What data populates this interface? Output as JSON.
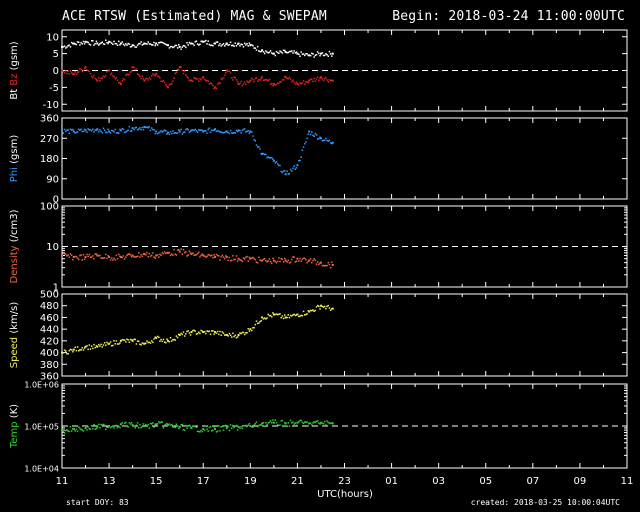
{
  "header": {
    "title": "ACE RTSW (Estimated) MAG & SWEPAM",
    "begin": "Begin: 2018-03-24 11:00:00UTC"
  },
  "footer": {
    "start_doy": "start DOY: 83",
    "created": "created: 2018-03-25 10:00:04UTC"
  },
  "colors": {
    "background": "#000000",
    "bt": "#ffffff",
    "bz": "#dd2222",
    "phi": "#3399ff",
    "density": "#ee6644",
    "speed": "#eeee55",
    "temp": "#33cc33"
  },
  "chart_data": [
    {
      "type": "scatter",
      "panel": "mag",
      "xlabel": "UTC(hours)",
      "x_ticks": [
        "11",
        "13",
        "15",
        "17",
        "19",
        "21",
        "23",
        "01",
        "03",
        "05",
        "07",
        "09",
        "11"
      ],
      "x_unit": "hours since 11:00 UTC",
      "xlim": [
        0,
        24
      ],
      "ylabel_parts": [
        "Bt",
        "Bz",
        "(gsm)"
      ],
      "ylim": [
        -12,
        12
      ],
      "y_ticks": [
        "10",
        "5",
        "0",
        "-5",
        "-10"
      ],
      "reference_line": 0,
      "series": [
        {
          "name": "Bt",
          "color": "#ffffff",
          "x": [
            0,
            0.5,
            1,
            1.5,
            2,
            2.5,
            3,
            3.5,
            4,
            4.5,
            5,
            5.5,
            6,
            6.5,
            7,
            7.5,
            8,
            8.5,
            9,
            9.5,
            10,
            10.5,
            11,
            11.5
          ],
          "y": [
            7,
            8,
            8.5,
            8,
            8.5,
            8,
            7.5,
            8,
            8,
            7.5,
            7,
            8,
            8.5,
            8,
            8,
            8,
            7.5,
            6,
            5,
            5.5,
            5,
            4.5,
            5,
            5
          ]
        },
        {
          "name": "Bz",
          "color": "#dd2222",
          "x": [
            0,
            0.5,
            1,
            1.5,
            2,
            2.5,
            3,
            3.5,
            4,
            4.5,
            5,
            5.5,
            6,
            6.5,
            7,
            7.5,
            8,
            8.5,
            9,
            9.5,
            10,
            10.5,
            11,
            11.5
          ],
          "y": [
            0,
            -1,
            1,
            -3,
            0,
            -4,
            1,
            -3,
            -1,
            -5,
            1,
            -3,
            -2,
            -5,
            0,
            -4,
            -3,
            -2,
            -4,
            -2,
            -4,
            -3,
            -2,
            -3
          ]
        }
      ]
    },
    {
      "type": "scatter",
      "panel": "phi",
      "ylabel_parts": [
        "Phi",
        "(gsm)"
      ],
      "ylim": [
        0,
        360
      ],
      "y_ticks": [
        "360",
        "270",
        "180",
        "90",
        "0"
      ],
      "series": [
        {
          "name": "Phi",
          "color": "#3399ff",
          "x": [
            0,
            0.5,
            1,
            1.5,
            2,
            2.5,
            3,
            3.5,
            4,
            4.5,
            5,
            5.5,
            6,
            6.5,
            7,
            7.5,
            8,
            8.5,
            9,
            9.5,
            10,
            10.5,
            11,
            11.5
          ],
          "y": [
            305,
            300,
            305,
            310,
            300,
            305,
            315,
            320,
            300,
            295,
            300,
            305,
            300,
            310,
            300,
            305,
            300,
            200,
            170,
            110,
            150,
            300,
            270,
            250
          ]
        }
      ]
    },
    {
      "type": "scatter",
      "panel": "density",
      "ylabel": "Density (/cm3)",
      "y_scale": "log",
      "ylim": [
        1,
        100
      ],
      "y_ticks": [
        "100",
        "10",
        "1"
      ],
      "reference_line": 10,
      "series": [
        {
          "name": "Density",
          "color": "#ee6644",
          "x": [
            0,
            0.5,
            1,
            1.5,
            2,
            2.5,
            3,
            3.5,
            4,
            4.5,
            5,
            5.5,
            6,
            6.5,
            7,
            7.5,
            8,
            8.5,
            9,
            9.5,
            10,
            10.5,
            11,
            11.5
          ],
          "y": [
            6,
            5.5,
            5.5,
            6,
            5.5,
            5.5,
            6,
            6.5,
            6,
            7,
            7.5,
            6.5,
            6,
            5.5,
            5.5,
            5,
            5,
            4.5,
            4.5,
            4.5,
            5,
            4.5,
            4,
            3.5
          ]
        }
      ]
    },
    {
      "type": "scatter",
      "panel": "speed",
      "ylabel": "Speed (km/s)",
      "ylim": [
        360,
        500
      ],
      "y_ticks": [
        "500",
        "480",
        "460",
        "440",
        "420",
        "400",
        "380",
        "360"
      ],
      "series": [
        {
          "name": "Speed",
          "color": "#eeee55",
          "x": [
            0,
            0.5,
            1,
            1.5,
            2,
            2.5,
            3,
            3.5,
            4,
            4.5,
            5,
            5.5,
            6,
            6.5,
            7,
            7.5,
            8,
            8.5,
            9,
            9.5,
            10,
            10.5,
            11,
            11.5
          ],
          "y": [
            400,
            405,
            410,
            410,
            415,
            420,
            420,
            415,
            425,
            420,
            430,
            435,
            435,
            435,
            430,
            430,
            440,
            460,
            465,
            460,
            465,
            470,
            480,
            475
          ]
        }
      ]
    },
    {
      "type": "scatter",
      "panel": "temp",
      "ylabel": "Temp (K)",
      "y_scale": "log",
      "ylim": [
        10000,
        1000000
      ],
      "y_ticks": [
        "1.0E+06",
        "1.0E+05",
        "1.0E+04"
      ],
      "reference_line": 100000,
      "series": [
        {
          "name": "Temp",
          "color": "#33cc33",
          "x": [
            0,
            0.5,
            1,
            1.5,
            2,
            2.5,
            3,
            3.5,
            4,
            4.5,
            5,
            5.5,
            6,
            6.5,
            7,
            7.5,
            8,
            8.5,
            9,
            9.5,
            10,
            10.5,
            11,
            11.5
          ],
          "y": [
            80000,
            85000,
            90000,
            95000,
            100000,
            110000,
            105000,
            100000,
            110000,
            105000,
            95000,
            90000,
            85000,
            85000,
            90000,
            95000,
            100000,
            115000,
            120000,
            115000,
            120000,
            115000,
            120000,
            115000
          ]
        }
      ]
    }
  ]
}
